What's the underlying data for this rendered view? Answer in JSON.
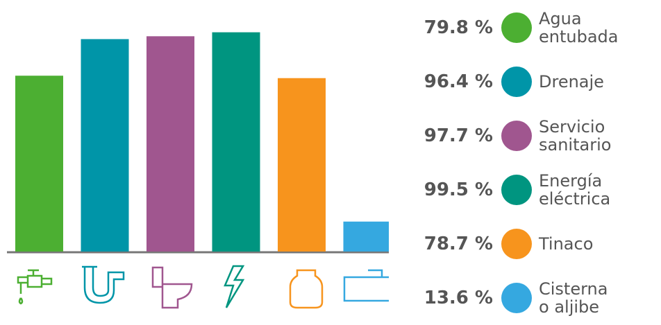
{
  "chart_data": {
    "type": "bar",
    "categories": [
      "Agua\nentubada",
      "Drenaje",
      "Servicio\nsanitario",
      "Energía\neléctrica",
      "Tinaco",
      "Cisterna\no aljibe"
    ],
    "values": [
      79.8,
      96.4,
      97.7,
      99.5,
      78.7,
      13.6
    ],
    "value_labels": [
      "79.8 %",
      "96.4 %",
      "97.7 %",
      "99.5 %",
      "78.7 %",
      "13.6 %"
    ],
    "colors": [
      "#4caf32",
      "#0095a8",
      "#a0568f",
      "#009580",
      "#f7941d",
      "#35a8e0"
    ],
    "ylim": [
      0,
      100
    ]
  }
}
